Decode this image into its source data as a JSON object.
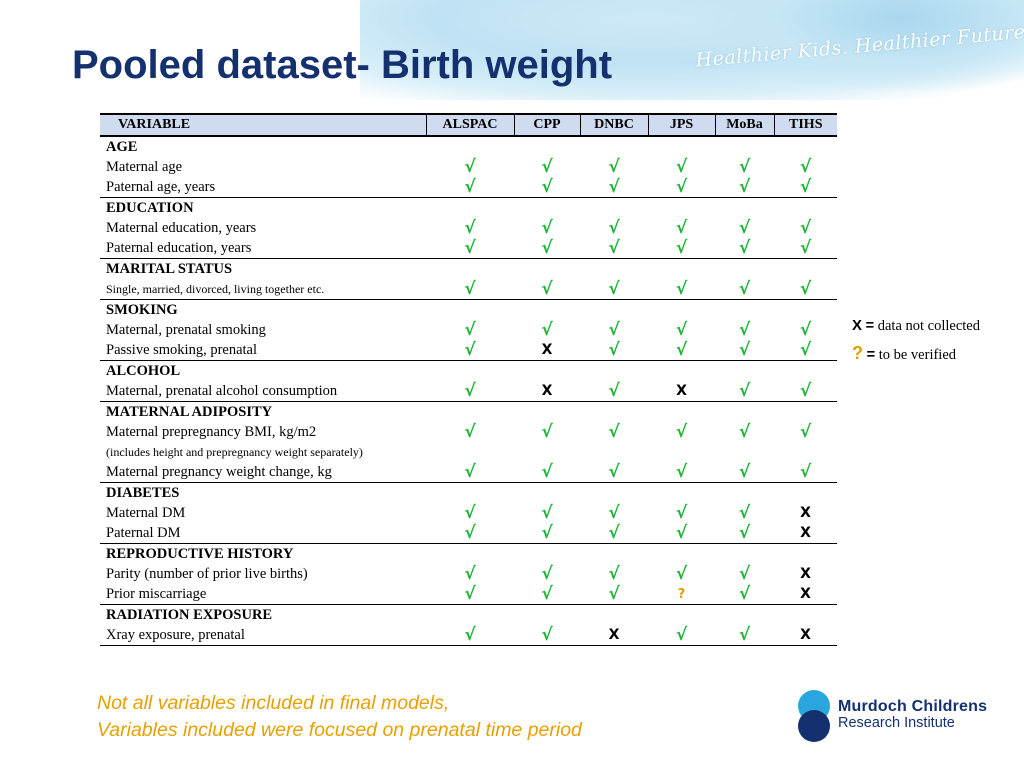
{
  "title": "Pooled dataset- Birth weight",
  "tagline": "Healthier Kids. Healthier Future.",
  "table": {
    "headers": [
      "VARIABLE",
      "ALSPAC",
      "CPP",
      "DNBC",
      "JPS",
      "MoBa",
      "TIHS"
    ],
    "rows": [
      {
        "label": "AGE",
        "section": true
      },
      {
        "label": "Maternal age",
        "values": [
          "√",
          "√",
          "√",
          "√",
          "√",
          "√"
        ]
      },
      {
        "label": "Paternal age, years",
        "values": [
          "√",
          "√",
          "√",
          "√",
          "√",
          "√"
        ],
        "end": true
      },
      {
        "label": "EDUCATION",
        "section": true
      },
      {
        "label": "Maternal education,  years",
        "values": [
          "√",
          "√",
          "√",
          "√",
          "√",
          "√"
        ]
      },
      {
        "label": "Paternal education,  years",
        "values": [
          "√",
          "√",
          "√",
          "√",
          "√",
          "√"
        ],
        "end": true
      },
      {
        "label": "MARITAL STATUS",
        "section": true
      },
      {
        "label": "Single, married, divorced,  living together etc.",
        "small": true,
        "values": [
          "√",
          "√",
          "√",
          "√",
          "√",
          "√"
        ],
        "end": true
      },
      {
        "label": "SMOKING",
        "section": true
      },
      {
        "label": "Maternal, prenatal smoking",
        "values": [
          "√",
          "√",
          "√",
          "√",
          "√",
          "√"
        ]
      },
      {
        "label": "Passive smoking, prenatal",
        "values": [
          "√",
          "X",
          "√",
          "√",
          "√",
          "√"
        ],
        "end": true
      },
      {
        "label": "ALCOHOL",
        "section": true
      },
      {
        "label": "Maternal, prenatal alcohol consumption",
        "values": [
          "√",
          "X",
          "√",
          "X",
          "√",
          "√"
        ],
        "end": true
      },
      {
        "label": "MATERNAL ADIPOSITY",
        "section": true
      },
      {
        "label": "Maternal prepregnancy BMI, kg/m2",
        "values": [
          "√",
          "√",
          "√",
          "√",
          "√",
          "√"
        ]
      },
      {
        "label": "(includes height and prepregnancy weight separately)",
        "small": true,
        "values": [
          "",
          "",
          "",
          "",
          "",
          ""
        ]
      },
      {
        "label": "Maternal pregnancy weight change, kg",
        "values": [
          "√",
          "√",
          "√",
          "√",
          "√",
          "√"
        ],
        "end": true
      },
      {
        "label": "DIABETES",
        "section": true
      },
      {
        "label": "Maternal DM",
        "values": [
          "√",
          "√",
          "√",
          "√",
          "√",
          "X"
        ]
      },
      {
        "label": "Paternal DM",
        "values": [
          "√",
          "√",
          "√",
          "√",
          "√",
          "X"
        ],
        "end": true
      },
      {
        "label": "REPRODUCTIVE HISTORY",
        "section": true
      },
      {
        "label": "Parity (number of prior live births)",
        "values": [
          "√",
          "√",
          "√",
          "√",
          "√",
          "X"
        ]
      },
      {
        "label": "Prior miscarriage",
        "values": [
          "√",
          "√",
          "√",
          "?",
          "√",
          "X"
        ],
        "end": true
      },
      {
        "label": "RADIATION EXPOSURE",
        "section": true
      },
      {
        "label": "Xray exposure, prenatal",
        "values": [
          "√",
          "√",
          "X",
          "√",
          "√",
          "X"
        ],
        "end": true
      }
    ]
  },
  "legend": [
    {
      "symbol": "X",
      "eq": "=",
      "text": "data not collected"
    },
    {
      "symbol": "?",
      "eq": "=",
      "text": "to be verified"
    }
  ],
  "note": {
    "line1": "Not all variables included in final models,",
    "line2": "Variables  included were focused on prenatal time period"
  },
  "logo": {
    "line1": "Murdoch Childrens",
    "line2": "Research Institute"
  },
  "colors": {
    "title": "#14306e",
    "check": "#1db535",
    "question": "#e0a000",
    "note": "#e8a000",
    "header_bg": "#cfdcf0"
  }
}
